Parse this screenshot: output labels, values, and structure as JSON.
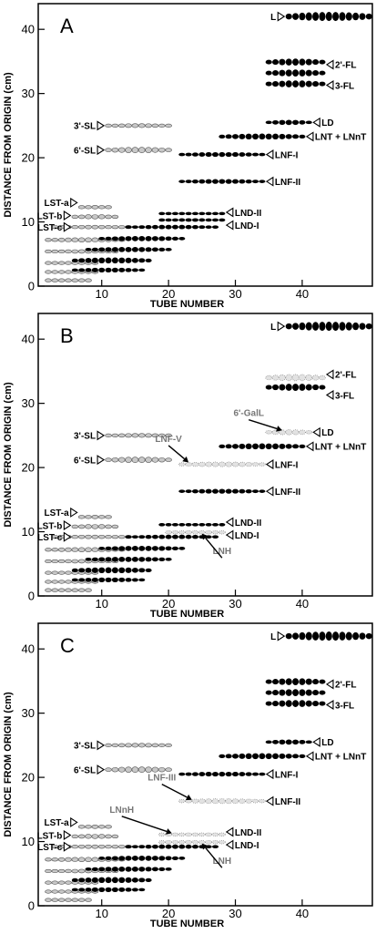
{
  "colors": {
    "black_spot": "#000000",
    "grey_spot": "#c8c8c8",
    "dotted_spot": "#e2e2e2",
    "spot_outline": "#555555"
  },
  "chart_data": [
    {
      "type": "scatter",
      "panel_label": "A",
      "xlabel": "TUBE NUMBER",
      "ylabel": "DISTANCE FROM ORIGIN (cm)",
      "xlim": [
        1,
        50
      ],
      "ylim": [
        0,
        44
      ],
      "xticks": [
        10,
        20,
        30,
        40
      ],
      "yticks": [
        0,
        10,
        20,
        30,
        40
      ],
      "series": [
        {
          "style": "black",
          "start": 38,
          "end": 50,
          "y": 42,
          "size": 2.3
        },
        {
          "style": "black",
          "start": 35,
          "end": 43,
          "y": 33.2,
          "size": 3.2,
          "rows": 3
        },
        {
          "style": "black",
          "start": 35,
          "end": 41,
          "y": 25.5,
          "size": 1.3
        },
        {
          "style": "black",
          "start": 28,
          "end": 40,
          "y": 23.3,
          "size": 1.5
        },
        {
          "style": "black",
          "start": 22,
          "end": 34,
          "y": 20.5,
          "size": 1.2
        },
        {
          "style": "black",
          "start": 22,
          "end": 34,
          "y": 16.3,
          "size": 1.2
        },
        {
          "style": "grey",
          "start": 11,
          "end": 20,
          "y": 25,
          "size": 1
        },
        {
          "style": "grey",
          "start": 11,
          "end": 20,
          "y": 21.2,
          "size": 1.4
        },
        {
          "style": "grey",
          "start": 7,
          "end": 11,
          "y": 12.3,
          "size": 0.9
        },
        {
          "style": "grey",
          "start": 6,
          "end": 12,
          "y": 10.8,
          "size": 1.1
        },
        {
          "style": "grey",
          "start": 3,
          "end": 14,
          "y": 9.2,
          "size": 0.9
        },
        {
          "style": "grey",
          "start": 2,
          "end": 13,
          "y": 7.2,
          "size": 1.1
        },
        {
          "style": "grey",
          "start": 2,
          "end": 12,
          "y": 5.4,
          "size": 0.9
        },
        {
          "style": "grey",
          "start": 2,
          "end": 9,
          "y": 3.6,
          "size": 0.8
        },
        {
          "style": "grey",
          "start": 2,
          "end": 9,
          "y": 2.2,
          "size": 0.7
        },
        {
          "style": "grey",
          "start": 2,
          "end": 8,
          "y": 0.9,
          "size": 0.6
        },
        {
          "style": "black",
          "start": 6,
          "end": 16,
          "y": 2.5,
          "size": 1.2
        },
        {
          "style": "black",
          "start": 6,
          "end": 17,
          "y": 4,
          "size": 1.5
        },
        {
          "style": "black",
          "start": 8,
          "end": 20,
          "y": 5.7,
          "size": 1.3
        },
        {
          "style": "black",
          "start": 10,
          "end": 22,
          "y": 7.4,
          "size": 1.3
        },
        {
          "style": "black",
          "start": 14,
          "end": 27,
          "y": 9.2,
          "size": 1.1
        },
        {
          "style": "black",
          "start": 19,
          "end": 28,
          "y": 10.3,
          "size": 0.9
        },
        {
          "style": "black",
          "start": 19,
          "end": 28,
          "y": 11.3,
          "size": 0.8
        }
      ],
      "labels": [
        {
          "text": "L",
          "x": 38,
          "y": 42,
          "side": "left"
        },
        {
          "text": "2'-FL",
          "x": 43,
          "y": 34.5,
          "side": "right"
        },
        {
          "text": "3-FL",
          "x": 43,
          "y": 31.3,
          "side": "right"
        },
        {
          "text": "LD",
          "x": 41,
          "y": 25.5,
          "side": "right"
        },
        {
          "text": "LNT + LNnT",
          "x": 40,
          "y": 23.3,
          "side": "right"
        },
        {
          "text": "LNF-I",
          "x": 34,
          "y": 20.5,
          "side": "right"
        },
        {
          "text": "LNF-II",
          "x": 34,
          "y": 16.3,
          "side": "right"
        },
        {
          "text": "LND-II",
          "x": 28,
          "y": 11.5,
          "side": "right"
        },
        {
          "text": "LND-I",
          "x": 28,
          "y": 9.5,
          "side": "right"
        },
        {
          "text": "3'-SL",
          "x": 11,
          "y": 25,
          "side": "left"
        },
        {
          "text": "6'-SL",
          "x": 11,
          "y": 21.2,
          "side": "left"
        },
        {
          "text": "LST-a",
          "x": 7,
          "y": 13,
          "side": "left"
        },
        {
          "text": "LST-b",
          "x": 6,
          "y": 11,
          "side": "left"
        },
        {
          "text": "LST-c",
          "x": 6,
          "y": 9.2,
          "side": "left"
        }
      ]
    },
    {
      "type": "scatter",
      "panel_label": "B",
      "xlabel": "TUBE NUMBER",
      "ylabel": "DISTANCE FROM ORIGIN (cm)",
      "xlim": [
        1,
        50
      ],
      "ylim": [
        0,
        44
      ],
      "xticks": [
        10,
        20,
        30,
        40
      ],
      "yticks": [
        0,
        10,
        20,
        30,
        40
      ],
      "series": [
        {
          "style": "black",
          "start": 38,
          "end": 50,
          "y": 42,
          "size": 2.3
        },
        {
          "style": "dotted",
          "start": 35,
          "end": 43,
          "y": 34,
          "size": 1.6
        },
        {
          "style": "black",
          "start": 35,
          "end": 43,
          "y": 32.5,
          "size": 1.8
        },
        {
          "style": "dotted",
          "start": 35,
          "end": 41,
          "y": 25.5,
          "size": 1.3
        },
        {
          "style": "black",
          "start": 28,
          "end": 40,
          "y": 23.3,
          "size": 1.5
        },
        {
          "style": "dotted",
          "start": 22,
          "end": 34,
          "y": 20.5,
          "size": 1.2
        },
        {
          "style": "black",
          "start": 22,
          "end": 34,
          "y": 16.3,
          "size": 1.2
        },
        {
          "style": "grey",
          "start": 11,
          "end": 20,
          "y": 25,
          "size": 1
        },
        {
          "style": "grey",
          "start": 11,
          "end": 20,
          "y": 21.2,
          "size": 1.4
        },
        {
          "style": "grey",
          "start": 7,
          "end": 11,
          "y": 12.3,
          "size": 0.9
        },
        {
          "style": "grey",
          "start": 6,
          "end": 12,
          "y": 10.8,
          "size": 1.1
        },
        {
          "style": "grey",
          "start": 3,
          "end": 14,
          "y": 9.2,
          "size": 0.9
        },
        {
          "style": "grey",
          "start": 2,
          "end": 13,
          "y": 7.2,
          "size": 1.1
        },
        {
          "style": "grey",
          "start": 2,
          "end": 12,
          "y": 5.4,
          "size": 0.9
        },
        {
          "style": "grey",
          "start": 2,
          "end": 9,
          "y": 3.6,
          "size": 0.8
        },
        {
          "style": "grey",
          "start": 2,
          "end": 9,
          "y": 2.2,
          "size": 0.7
        },
        {
          "style": "grey",
          "start": 2,
          "end": 8,
          "y": 0.9,
          "size": 0.6
        },
        {
          "style": "black",
          "start": 6,
          "end": 16,
          "y": 2.5,
          "size": 1.2
        },
        {
          "style": "black",
          "start": 6,
          "end": 17,
          "y": 4,
          "size": 1.5
        },
        {
          "style": "black",
          "start": 8,
          "end": 20,
          "y": 5.7,
          "size": 1.3
        },
        {
          "style": "black",
          "start": 10,
          "end": 22,
          "y": 7.4,
          "size": 1.3
        },
        {
          "style": "black",
          "start": 14,
          "end": 27,
          "y": 9.2,
          "size": 1.1
        },
        {
          "style": "dotted",
          "start": 20,
          "end": 28,
          "y": 9.9,
          "size": 0.9
        },
        {
          "style": "black",
          "start": 19,
          "end": 28,
          "y": 11.1,
          "size": 0.8
        }
      ],
      "labels": [
        {
          "text": "L",
          "x": 38,
          "y": 42,
          "side": "left"
        },
        {
          "text": "2'-FL",
          "x": 43,
          "y": 34.5,
          "side": "right"
        },
        {
          "text": "3-FL",
          "x": 43,
          "y": 31.3,
          "side": "right"
        },
        {
          "text": "LD",
          "x": 41,
          "y": 25.5,
          "side": "right"
        },
        {
          "text": "LNT + LNnT",
          "x": 40,
          "y": 23.3,
          "side": "right"
        },
        {
          "text": "LNF-I",
          "x": 34,
          "y": 20.5,
          "side": "right"
        },
        {
          "text": "LNF-II",
          "x": 34,
          "y": 16.3,
          "side": "right"
        },
        {
          "text": "LND-II",
          "x": 28,
          "y": 11.5,
          "side": "right"
        },
        {
          "text": "LND-I",
          "x": 28,
          "y": 9.5,
          "side": "right"
        },
        {
          "text": "3'-SL",
          "x": 11,
          "y": 25,
          "side": "left"
        },
        {
          "text": "6'-SL",
          "x": 11,
          "y": 21.2,
          "side": "left"
        },
        {
          "text": "LST-a",
          "x": 7,
          "y": 13,
          "side": "left"
        },
        {
          "text": "LST-b",
          "x": 6,
          "y": 11,
          "side": "left"
        },
        {
          "text": "LST-c",
          "x": 6,
          "y": 9.2,
          "side": "left"
        }
      ],
      "callouts": [
        {
          "text": "6'-GalL",
          "tx": 32,
          "ty": 28,
          "ax": 37,
          "ay": 25.8,
          "grey": true
        },
        {
          "text": "LNF-V",
          "tx": 20,
          "ty": 24,
          "ax": 23,
          "ay": 20.8,
          "grey": true
        },
        {
          "text": "LNH",
          "tx": 28,
          "ty": 6.5,
          "ax": 25,
          "ay": 9.7,
          "grey": true
        }
      ]
    },
    {
      "type": "scatter",
      "panel_label": "C",
      "xlabel": "TUBE NUMBER",
      "ylabel": "DISTANCE FROM ORIGIN (cm)",
      "xlim": [
        1,
        50
      ],
      "ylim": [
        0,
        44
      ],
      "xticks": [
        10,
        20,
        30,
        40
      ],
      "yticks": [
        0,
        10,
        20,
        30,
        40
      ],
      "series": [
        {
          "style": "black",
          "start": 38,
          "end": 50,
          "y": 42,
          "size": 2.3
        },
        {
          "style": "black",
          "start": 35,
          "end": 43,
          "y": 33.2,
          "size": 3.2,
          "rows": 3
        },
        {
          "style": "black",
          "start": 35,
          "end": 41,
          "y": 25.5,
          "size": 1.3
        },
        {
          "style": "black",
          "start": 28,
          "end": 40,
          "y": 23.3,
          "size": 1.5
        },
        {
          "style": "black",
          "start": 22,
          "end": 34,
          "y": 20.5,
          "size": 1.2
        },
        {
          "style": "dotted",
          "start": 22,
          "end": 34,
          "y": 16.3,
          "size": 1.2
        },
        {
          "style": "grey",
          "start": 11,
          "end": 20,
          "y": 25,
          "size": 1
        },
        {
          "style": "grey",
          "start": 11,
          "end": 20,
          "y": 21.2,
          "size": 1.4
        },
        {
          "style": "grey",
          "start": 7,
          "end": 11,
          "y": 12.3,
          "size": 0.9
        },
        {
          "style": "grey",
          "start": 6,
          "end": 12,
          "y": 10.8,
          "size": 1.1
        },
        {
          "style": "grey",
          "start": 3,
          "end": 14,
          "y": 9.2,
          "size": 0.9
        },
        {
          "style": "grey",
          "start": 2,
          "end": 13,
          "y": 7.2,
          "size": 1.1
        },
        {
          "style": "grey",
          "start": 2,
          "end": 12,
          "y": 5.4,
          "size": 0.9
        },
        {
          "style": "grey",
          "start": 2,
          "end": 9,
          "y": 3.6,
          "size": 0.8
        },
        {
          "style": "grey",
          "start": 2,
          "end": 9,
          "y": 2.2,
          "size": 0.7
        },
        {
          "style": "grey",
          "start": 2,
          "end": 8,
          "y": 0.9,
          "size": 0.6
        },
        {
          "style": "black",
          "start": 6,
          "end": 16,
          "y": 2.5,
          "size": 1.2
        },
        {
          "style": "black",
          "start": 6,
          "end": 17,
          "y": 4,
          "size": 1.5
        },
        {
          "style": "black",
          "start": 8,
          "end": 20,
          "y": 5.7,
          "size": 1.3
        },
        {
          "style": "black",
          "start": 10,
          "end": 22,
          "y": 7.4,
          "size": 1.3
        },
        {
          "style": "black",
          "start": 14,
          "end": 27,
          "y": 9.2,
          "size": 1.1
        },
        {
          "style": "dotted",
          "start": 19,
          "end": 28,
          "y": 9.9,
          "size": 0.9
        },
        {
          "style": "dotted",
          "start": 19,
          "end": 28,
          "y": 11.1,
          "size": 0.8
        }
      ],
      "labels": [
        {
          "text": "L",
          "x": 38,
          "y": 42,
          "side": "left"
        },
        {
          "text": "2'-FL",
          "x": 43,
          "y": 34.5,
          "side": "right"
        },
        {
          "text": "3-FL",
          "x": 43,
          "y": 31.3,
          "side": "right"
        },
        {
          "text": "LD",
          "x": 41,
          "y": 25.5,
          "side": "right"
        },
        {
          "text": "LNT + LNnT",
          "x": 40,
          "y": 23.3,
          "side": "right"
        },
        {
          "text": "LNF-I",
          "x": 34,
          "y": 20.5,
          "side": "right"
        },
        {
          "text": "LNF-II",
          "x": 34,
          "y": 16.3,
          "side": "right"
        },
        {
          "text": "LND-II",
          "x": 28,
          "y": 11.5,
          "side": "right"
        },
        {
          "text": "LND-I",
          "x": 28,
          "y": 9.5,
          "side": "right"
        },
        {
          "text": "3'-SL",
          "x": 11,
          "y": 25,
          "side": "left"
        },
        {
          "text": "6'-SL",
          "x": 11,
          "y": 21.2,
          "side": "left"
        },
        {
          "text": "LST-a",
          "x": 7,
          "y": 13,
          "side": "left"
        },
        {
          "text": "LST-b",
          "x": 6,
          "y": 11,
          "side": "left"
        },
        {
          "text": "LST-c",
          "x": 6,
          "y": 9.2,
          "side": "left"
        }
      ],
      "callouts": [
        {
          "text": "LNF-III",
          "tx": 19,
          "ty": 19.5,
          "ax": 23.5,
          "ay": 16.5,
          "grey": true
        },
        {
          "text": "LNnH",
          "tx": 13,
          "ty": 14.5,
          "ax": 20.5,
          "ay": 11.3,
          "grey": true
        },
        {
          "text": "LNH",
          "tx": 28,
          "ty": 6.5,
          "ax": 25,
          "ay": 9.7,
          "grey": true
        }
      ]
    }
  ]
}
